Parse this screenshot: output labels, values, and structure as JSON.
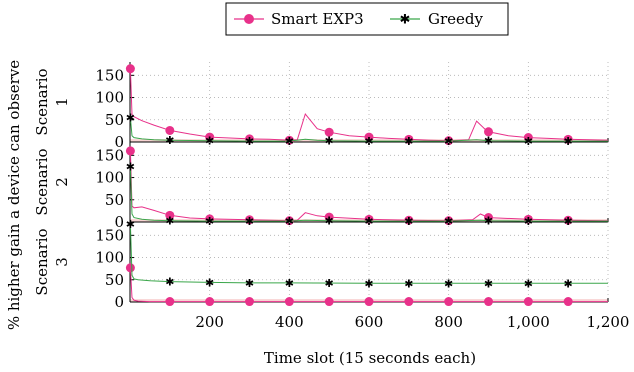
{
  "colors": {
    "smart_exp3": "#e8318a",
    "greedy": "#3aa64a",
    "grid": "#b0b0b0",
    "axis": "#000000"
  },
  "chart_data": {
    "type": "line",
    "legend": {
      "placement": "top-center",
      "entries": [
        {
          "name": "Smart EXP3",
          "marker": "circle",
          "color": "#e8318a"
        },
        {
          "name": "Greedy",
          "marker": "star",
          "color": "#3aa64a"
        }
      ]
    },
    "xlabel": "Time slot (15 seconds each)",
    "ylabel": "% higher gain a device can observe",
    "xlim": [
      0,
      1200
    ],
    "xticks": [
      200,
      400,
      600,
      800,
      1000,
      1200
    ],
    "xtick_labels": [
      "200",
      "400",
      "600",
      "800",
      "1,000",
      "1,200"
    ],
    "grid": "dotted",
    "panels": [
      {
        "label": "Scenario 1",
        "ylim": [
          0,
          180
        ],
        "yticks": [
          0,
          50,
          100,
          150
        ],
        "series": [
          {
            "name": "Smart EXP3",
            "x": [
              1,
              5,
              10,
              30,
              60,
              100,
              150,
              200,
              250,
              300,
              350,
              400,
              420,
              440,
              470,
              500,
              550,
              600,
              650,
              700,
              750,
              800,
              850,
              870,
              890,
              900,
              950,
              1000,
              1050,
              1100,
              1150,
              1200
            ],
            "y": [
              165,
              62,
              57,
              48,
              38,
              26,
              18,
              11,
              9,
              7,
              6,
              4,
              5,
              63,
              30,
              22,
              14,
              11,
              8,
              6,
              4,
              3,
              5,
              47,
              30,
              23,
              14,
              10,
              8,
              6,
              5,
              4
            ],
            "marker_x": [
              1,
              100,
              200,
              300,
              400,
              500,
              600,
              700,
              800,
              900,
              1000,
              1100
            ]
          },
          {
            "name": "Greedy",
            "x": [
              1,
              5,
              10,
              30,
              60,
              100,
              200,
              300,
              400,
              440,
              470,
              500,
              600,
              700,
              800,
              870,
              900,
              1000,
              1100,
              1200
            ],
            "y": [
              55,
              14,
              10,
              7,
              5,
              4,
              3,
              2,
              2,
              6,
              4,
              3,
              2,
              2,
              2,
              5,
              3,
              2,
              2,
              2
            ],
            "marker_x": [
              1,
              100,
              200,
              300,
              400,
              500,
              600,
              700,
              800,
              900,
              1000,
              1100
            ]
          }
        ]
      },
      {
        "label": "Scenario 2",
        "ylim": [
          0,
          180
        ],
        "yticks": [
          0,
          50,
          100,
          150
        ],
        "series": [
          {
            "name": "Smart EXP3",
            "x": [
              1,
              5,
              10,
              30,
              60,
              100,
              150,
              200,
              300,
              400,
              420,
              440,
              470,
              500,
              600,
              700,
              800,
              860,
              880,
              900,
              1000,
              1100,
              1200
            ],
            "y": [
              160,
              36,
              32,
              34,
              26,
              15,
              9,
              7,
              5,
              3,
              4,
              21,
              14,
              11,
              6,
              4,
              3,
              5,
              18,
              10,
              6,
              4,
              3
            ],
            "marker_x": [
              1,
              100,
              200,
              300,
              400,
              500,
              600,
              700,
              800,
              900,
              1000,
              1100
            ]
          },
          {
            "name": "Greedy",
            "x": [
              1,
              5,
              10,
              30,
              60,
              100,
              200,
              300,
              400,
              440,
              500,
              600,
              700,
              800,
              880,
              900,
              1000,
              1100,
              1200
            ],
            "y": [
              125,
              18,
              10,
              6,
              4,
              3,
              2,
              2,
              2,
              4,
              3,
              2,
              2,
              2,
              4,
              3,
              2,
              2,
              2
            ],
            "marker_x": [
              1,
              100,
              200,
              300,
              400,
              500,
              600,
              700,
              800,
              900,
              1000,
              1100
            ]
          }
        ]
      },
      {
        "label": "Scenario 3",
        "ylim": [
          0,
          180
        ],
        "yticks": [
          0,
          50,
          100,
          150
        ],
        "series": [
          {
            "name": "Smart EXP3",
            "x": [
              1,
              5,
              10,
              20,
              50,
              100,
              200,
              400,
              600,
              800,
              1000,
              1200
            ],
            "y": [
              77,
              10,
              4,
              2,
              1,
              1,
              1,
              1,
              1,
              1,
              1,
              1
            ],
            "marker_x": [
              1,
              100,
              200,
              300,
              400,
              500,
              600,
              700,
              800,
              900,
              1000,
              1100
            ]
          },
          {
            "name": "Greedy",
            "x": [
              1,
              5,
              10,
              20,
              50,
              100,
              200,
              300,
              400,
              600,
              800,
              1000,
              1200
            ],
            "y": [
              175,
              60,
              52,
              50,
              48,
              46,
              44,
              43,
              43,
              42,
              42,
              42,
              42
            ],
            "marker_x": [
              1,
              100,
              200,
              300,
              400,
              500,
              600,
              700,
              800,
              900,
              1000,
              1100
            ]
          }
        ]
      }
    ]
  }
}
